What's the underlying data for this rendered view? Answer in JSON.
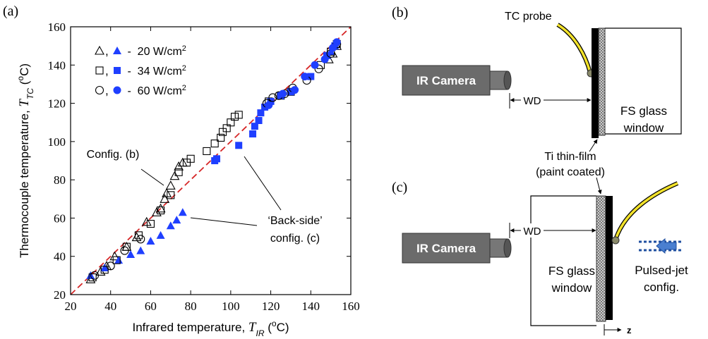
{
  "chart_data": {
    "type": "scatter",
    "panel_label": "(a)",
    "xlabel": {
      "text": "Infrared temperature, ",
      "symbol": "T",
      "sub": "IR",
      "unit_pre": " (",
      "unit_sup": "o",
      "unit_post": "C)"
    },
    "ylabel": {
      "text": "Thermocouple temperature, ",
      "symbol": "T",
      "sub": "TC",
      "unit_pre": " (",
      "unit_sup": "o",
      "unit_post": "C)"
    },
    "xlim": [
      20,
      160
    ],
    "ylim": [
      20,
      160
    ],
    "xticks": [
      20,
      40,
      60,
      80,
      100,
      120,
      140,
      160
    ],
    "yticks": [
      20,
      40,
      60,
      80,
      100,
      120,
      140,
      160
    ],
    "diagonal": {
      "x": [
        20,
        160
      ],
      "y": [
        20,
        160
      ],
      "color": "#d62728"
    },
    "legend": [
      {
        "sep": ",",
        "text": " -  20 W/cm",
        "sup": "2"
      },
      {
        "sep": ",",
        "text": " -  34 W/cm",
        "sup": "2"
      },
      {
        "sep": ",",
        "text": " -  60 W/cm",
        "sup": "2"
      }
    ],
    "annotations": [
      {
        "lines": [
          "Config. (b)"
        ]
      },
      {
        "lines": [
          "‘Back-side’",
          "config. (c)"
        ]
      }
    ],
    "series": [
      {
        "marker": "triangle",
        "filled": false,
        "color": "#000000",
        "x": [
          30,
          35,
          38,
          42,
          48,
          53,
          58,
          63,
          65,
          67,
          68,
          70,
          72,
          74,
          76,
          149,
          151,
          153
        ],
        "values": [
          28,
          32,
          35,
          40,
          45,
          50,
          58,
          63,
          65,
          70,
          73,
          77,
          82,
          87,
          89,
          143,
          146,
          150
        ]
      },
      {
        "marker": "triangle",
        "filled": true,
        "color": "#1f3fff",
        "x": [
          30,
          37,
          44,
          50,
          55,
          60,
          65,
          70,
          73,
          76,
          148,
          150,
          152
        ],
        "values": [
          30,
          34,
          38,
          41,
          43,
          48,
          51,
          56,
          59,
          63,
          145,
          147,
          150
        ]
      },
      {
        "marker": "square",
        "filled": false,
        "color": "#000000",
        "x": [
          31,
          37,
          43,
          48,
          54,
          60,
          65,
          70,
          74,
          78,
          80,
          88,
          92,
          95,
          96,
          98,
          100,
          102,
          104,
          119,
          125,
          130,
          145,
          150,
          153
        ],
        "values": [
          29,
          33,
          38,
          45,
          51,
          57,
          64,
          72,
          84,
          89,
          91,
          95,
          99,
          102,
          105,
          107,
          110,
          113,
          114,
          121,
          124,
          126,
          140,
          147,
          151
        ]
      },
      {
        "marker": "square",
        "filled": true,
        "color": "#1f3fff",
        "x": [
          92,
          93,
          104,
          111,
          112,
          114,
          115,
          117,
          120,
          125,
          130,
          140,
          148,
          152
        ],
        "values": [
          90,
          91,
          98,
          104,
          108,
          111,
          115,
          118,
          121,
          124,
          126,
          134,
          145,
          150
        ]
      },
      {
        "marker": "circle",
        "filled": false,
        "color": "#000000",
        "x": [
          32,
          40,
          47,
          55,
          118,
          121,
          124,
          127,
          131,
          138,
          144,
          150,
          153
        ],
        "values": [
          30,
          35,
          43,
          49,
          120,
          123,
          124,
          125,
          128,
          132,
          138,
          146,
          151
        ]
      },
      {
        "marker": "circle",
        "filled": true,
        "color": "#1f3fff",
        "x": [
          119,
          126,
          132,
          137,
          142,
          147,
          151,
          153
        ],
        "values": [
          119,
          125,
          127,
          134,
          140,
          143,
          149,
          152
        ]
      }
    ]
  },
  "diagram_b": {
    "label": "(b)",
    "probe": "TC probe",
    "camera": "IR Camera",
    "wd": "WD",
    "window": [
      "FS glass",
      "window"
    ],
    "film": [
      "Ti thin-film",
      "(paint coated)"
    ]
  },
  "diagram_c": {
    "label": "(c)",
    "camera": "IR Camera",
    "wd": "WD",
    "window": [
      "FS glass",
      "window"
    ],
    "jet": [
      "Pulsed-jet",
      "config."
    ],
    "axis": "z"
  }
}
